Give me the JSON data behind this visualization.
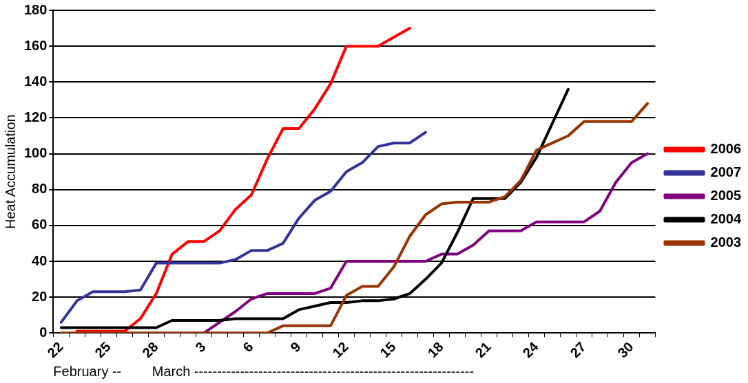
{
  "chart_data": {
    "type": "line",
    "ylabel": "Heat Accumulation",
    "xlabel": "February --        March -------------------------------------------------------------",
    "categories": [
      "22",
      null,
      null,
      "25",
      null,
      null,
      "28",
      null,
      null,
      "3",
      null,
      null,
      "6",
      null,
      null,
      "9",
      null,
      null,
      "12",
      null,
      null,
      "15",
      null,
      null,
      "18",
      null,
      null,
      "21",
      null,
      null,
      "24",
      null,
      null,
      "27",
      null,
      null,
      "30",
      null
    ],
    "ylim": [
      0,
      180
    ],
    "yticks": [
      0,
      20,
      40,
      60,
      80,
      100,
      120,
      140,
      160,
      180
    ],
    "grid": "y",
    "legend": "right",
    "marker": "none",
    "line_style": "solid",
    "series": [
      {
        "name": "2006",
        "color": "#ff0000",
        "values": [
          null,
          1,
          1,
          1,
          1,
          8,
          22,
          44,
          51,
          51,
          57,
          69,
          77,
          97,
          114,
          114,
          125,
          139,
          160,
          160,
          160,
          165,
          170,
          null,
          null,
          null,
          null,
          null,
          null,
          null,
          null,
          null,
          null,
          null,
          null,
          null,
          null,
          null
        ]
      },
      {
        "name": "2007",
        "color": "#333399",
        "values": [
          6,
          18,
          23,
          23,
          23,
          24,
          39,
          39,
          39,
          39,
          39,
          41,
          46,
          46,
          50,
          64,
          74,
          79,
          90,
          95,
          104,
          106,
          106,
          112,
          null,
          null,
          null,
          null,
          null,
          null,
          null,
          null,
          null,
          null,
          null,
          null,
          null,
          null
        ]
      },
      {
        "name": "2005",
        "color": "#800080",
        "values": [
          null,
          null,
          null,
          null,
          null,
          null,
          null,
          null,
          null,
          0,
          6,
          12,
          19,
          22,
          22,
          22,
          22,
          25,
          40,
          40,
          40,
          40,
          40,
          40,
          44,
          44,
          49,
          57,
          57,
          57,
          62,
          62,
          62,
          62,
          68,
          84,
          95,
          100
        ]
      },
      {
        "name": "2004",
        "color": "#000000",
        "values": [
          3,
          3,
          3,
          3,
          3,
          3,
          3,
          7,
          7,
          7,
          7,
          8,
          8,
          8,
          8,
          13,
          15,
          17,
          17,
          18,
          18,
          19,
          22,
          30,
          39,
          56,
          75,
          75,
          75,
          84,
          98,
          117,
          136,
          null,
          null,
          null,
          null,
          null
        ]
      },
      {
        "name": "2003",
        "color": "#993300",
        "values": [
          0,
          0,
          0,
          0,
          0,
          0,
          0,
          0,
          0,
          0,
          0,
          0,
          0,
          0,
          4,
          4,
          4,
          4,
          21,
          26,
          26,
          37,
          54,
          66,
          72,
          73,
          73,
          73,
          76,
          85,
          102,
          106,
          110,
          118,
          118,
          118,
          118,
          128
        ]
      }
    ]
  }
}
